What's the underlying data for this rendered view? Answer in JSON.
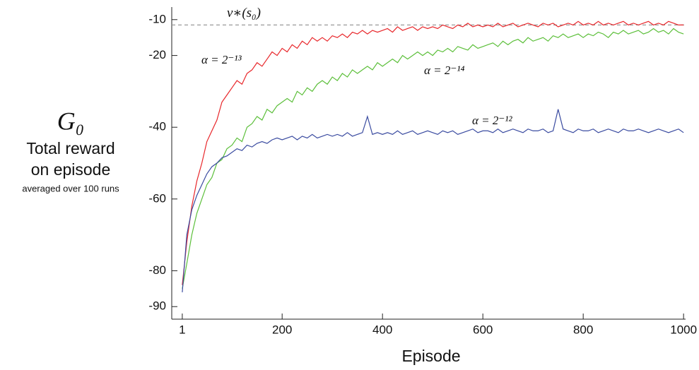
{
  "chart_data": {
    "type": "line",
    "y_label_symbol": "G₀",
    "y_label_lines": [
      "Total reward",
      "on episode",
      "averaged over 100 runs"
    ],
    "x_label": "Episode",
    "x": [
      1,
      10,
      20,
      30,
      40,
      50,
      60,
      70,
      80,
      90,
      100,
      110,
      120,
      130,
      140,
      150,
      160,
      170,
      180,
      190,
      200,
      210,
      220,
      230,
      240,
      250,
      260,
      270,
      280,
      290,
      300,
      310,
      320,
      330,
      340,
      350,
      360,
      370,
      380,
      390,
      400,
      410,
      420,
      430,
      440,
      450,
      460,
      470,
      480,
      490,
      500,
      510,
      520,
      530,
      540,
      550,
      560,
      570,
      580,
      590,
      600,
      610,
      620,
      630,
      640,
      650,
      660,
      670,
      680,
      690,
      700,
      710,
      720,
      730,
      740,
      750,
      760,
      770,
      780,
      790,
      800,
      810,
      820,
      830,
      840,
      850,
      860,
      870,
      880,
      890,
      900,
      910,
      920,
      930,
      940,
      950,
      960,
      970,
      980,
      990,
      1000
    ],
    "series": [
      {
        "name": "α = 2⁻¹³",
        "color": "#e8262a",
        "values": [
          -84,
          -72,
          -62,
          -55,
          -50,
          -44,
          -41,
          -38,
          -33,
          -31,
          -29,
          -27,
          -28,
          -25,
          -24,
          -22,
          -23,
          -21,
          -19,
          -20,
          -18,
          -19,
          -17,
          -18,
          -16,
          -17,
          -15,
          -16,
          -15,
          -16,
          -14.5,
          -15,
          -14,
          -15,
          -13.5,
          -14,
          -13,
          -14,
          -13,
          -13.5,
          -13,
          -12.5,
          -13.5,
          -12,
          -13,
          -12.5,
          -12,
          -13,
          -12,
          -12.5,
          -12,
          -12.5,
          -11.5,
          -12,
          -12.5,
          -11.5,
          -12,
          -11,
          -12,
          -11.5,
          -12,
          -11.5,
          -12,
          -11,
          -12,
          -11.5,
          -11,
          -12,
          -11.5,
          -11,
          -11.5,
          -12,
          -11,
          -11.5,
          -11,
          -12,
          -11.5,
          -11,
          -11.5,
          -10.5,
          -11.5,
          -11,
          -11.5,
          -10.5,
          -11.5,
          -11,
          -11.5,
          -11,
          -10.5,
          -11.5,
          -11,
          -11.5,
          -11,
          -10.5,
          -11.5,
          -11,
          -11.5,
          -10.5,
          -11,
          -11.5,
          -11.5
        ]
      },
      {
        "name": "α = 2⁻¹⁴",
        "color": "#5cbf3a",
        "values": [
          -85,
          -78,
          -70,
          -64,
          -60,
          -56,
          -54,
          -50,
          -49,
          -46,
          -45,
          -43,
          -44,
          -40,
          -39,
          -37,
          -38,
          -35,
          -36,
          -34,
          -33,
          -32,
          -33,
          -30,
          -31,
          -29,
          -30,
          -28,
          -27,
          -28,
          -26,
          -27,
          -25,
          -26,
          -24,
          -25,
          -24,
          -23,
          -24,
          -22,
          -23,
          -22,
          -21,
          -22,
          -20,
          -21,
          -20,
          -19,
          -20,
          -19,
          -20,
          -18.5,
          -19,
          -18,
          -19,
          -17.5,
          -18,
          -18.5,
          -17,
          -18,
          -17.5,
          -17,
          -16.5,
          -17.5,
          -16,
          -17,
          -16,
          -15.5,
          -16.5,
          -15,
          -16,
          -15.5,
          -15,
          -16,
          -14.5,
          -15,
          -14,
          -15,
          -14.5,
          -14,
          -15,
          -14,
          -14.5,
          -13.5,
          -14,
          -15,
          -13.5,
          -14,
          -13,
          -14,
          -13.5,
          -13,
          -14,
          -13.5,
          -12.5,
          -13.5,
          -13,
          -14,
          -12.5,
          -13.5,
          -14
        ]
      },
      {
        "name": "α = 2⁻¹²",
        "color": "#3a4ba0",
        "values": [
          -86,
          -70,
          -63,
          -59,
          -56,
          -53,
          -51,
          -50,
          -48.5,
          -48,
          -47,
          -46,
          -46.5,
          -45,
          -45.5,
          -44.5,
          -44,
          -44.5,
          -43.5,
          -43,
          -43.5,
          -43,
          -42.5,
          -43.5,
          -42.5,
          -43,
          -42,
          -43,
          -42.5,
          -42,
          -42.5,
          -42,
          -42.5,
          -41.5,
          -42.5,
          -42,
          -41.5,
          -37,
          -42,
          -41.5,
          -42,
          -41.5,
          -42,
          -41,
          -42,
          -41.5,
          -41,
          -42,
          -41.5,
          -41,
          -41.5,
          -42,
          -41,
          -41.5,
          -41,
          -42,
          -41.5,
          -41,
          -40.5,
          -41.5,
          -41,
          -41,
          -41.5,
          -40.5,
          -41.5,
          -41,
          -40.5,
          -41,
          -41.5,
          -40.5,
          -41,
          -41,
          -40.5,
          -41.5,
          -41,
          -35,
          -40.5,
          -41,
          -41.5,
          -40.5,
          -41,
          -41,
          -40.5,
          -41.5,
          -41,
          -40.5,
          -41,
          -41.5,
          -40.5,
          -41,
          -41,
          -40.5,
          -41,
          -41.5,
          -41,
          -40.5,
          -41,
          -41.5,
          -41,
          -40.5,
          -41.5
        ]
      }
    ],
    "reference_line": {
      "value": -11.5,
      "label": "v∗(s₀)",
      "color": "#999999"
    },
    "xlim": [
      -20,
      1004
    ],
    "ylim": [
      -93.5,
      -6.5
    ],
    "xticks": [
      1,
      200,
      400,
      600,
      800,
      1000
    ],
    "yticks": [
      -10,
      -20,
      -40,
      -60,
      -80,
      -90
    ]
  }
}
